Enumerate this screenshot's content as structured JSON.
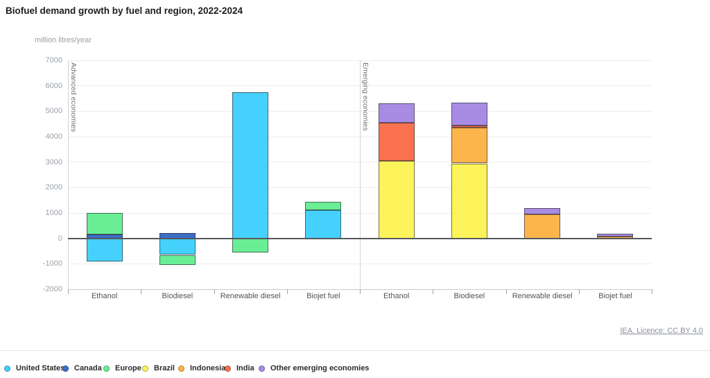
{
  "title": "Biofuel demand growth by fuel and region, 2022-2024",
  "y_axis": {
    "unit_label": "million litres/year",
    "min": -2000,
    "max": 7000,
    "tick_step": 1000
  },
  "footer": {
    "license_text": "IEA. Licence: CC BY 4.0"
  },
  "legend": [
    "United States",
    "Canada",
    "Europe",
    "Brazil",
    "Indonesia",
    "India",
    "Other emerging economies"
  ],
  "chart_data": {
    "type": "bar",
    "stacked": true,
    "title": "Biofuel demand growth by fuel and region, 2022-2024",
    "ylabel": "million litres/year",
    "ylim": [
      -2000,
      7000
    ],
    "ytick_step": 1000,
    "grid": true,
    "legend_position": "bottom",
    "categories": [
      "Ethanol",
      "Biodiesel",
      "Renewable diesel",
      "Biojet fuel"
    ],
    "panels": [
      {
        "label": "Advanced economies",
        "bars": [
          {
            "category": "Ethanol",
            "segments": [
              {
                "series": "Canada",
                "value": 150
              },
              {
                "series": "Europe",
                "value": 850
              },
              {
                "series": "United States",
                "value": -900
              }
            ]
          },
          {
            "category": "Biodiesel",
            "segments": [
              {
                "series": "Canada",
                "value": 200
              },
              {
                "series": "United States",
                "value": -650
              },
              {
                "series": "Europe",
                "value": -400
              }
            ]
          },
          {
            "category": "Renewable diesel",
            "segments": [
              {
                "series": "United States",
                "value": 5750
              },
              {
                "series": "Europe",
                "value": -550
              }
            ]
          },
          {
            "category": "Biojet fuel",
            "segments": [
              {
                "series": "United States",
                "value": 1100
              },
              {
                "series": "Europe",
                "value": 350
              }
            ]
          }
        ]
      },
      {
        "label": "Emerging economies",
        "bars": [
          {
            "category": "Ethanol",
            "segments": [
              {
                "series": "Brazil",
                "value": 3050
              },
              {
                "series": "India",
                "value": 1500
              },
              {
                "series": "Other emerging economies",
                "value": 750
              }
            ]
          },
          {
            "category": "Biodiesel",
            "segments": [
              {
                "series": "Brazil",
                "value": 2950
              },
              {
                "series": "Indonesia",
                "value": 1400
              },
              {
                "series": "India",
                "value": 75
              },
              {
                "series": "Other emerging economies",
                "value": 925
              }
            ]
          },
          {
            "category": "Renewable diesel",
            "segments": [
              {
                "series": "Indonesia",
                "value": 950
              },
              {
                "series": "Other emerging economies",
                "value": 250
              }
            ]
          },
          {
            "category": "Biojet fuel",
            "segments": [
              {
                "series": "Indonesia",
                "value": 75
              },
              {
                "series": "Other emerging economies",
                "value": 100
              }
            ]
          }
        ]
      }
    ],
    "series_colors": {
      "United States": "#45d1fc",
      "Canada": "#3c6ec8",
      "Europe": "#69ee96",
      "Brazil": "#fcf35b",
      "Indonesia": "#fcb44d",
      "India": "#fa7150",
      "Other emerging economies": "#a88ce4"
    }
  }
}
